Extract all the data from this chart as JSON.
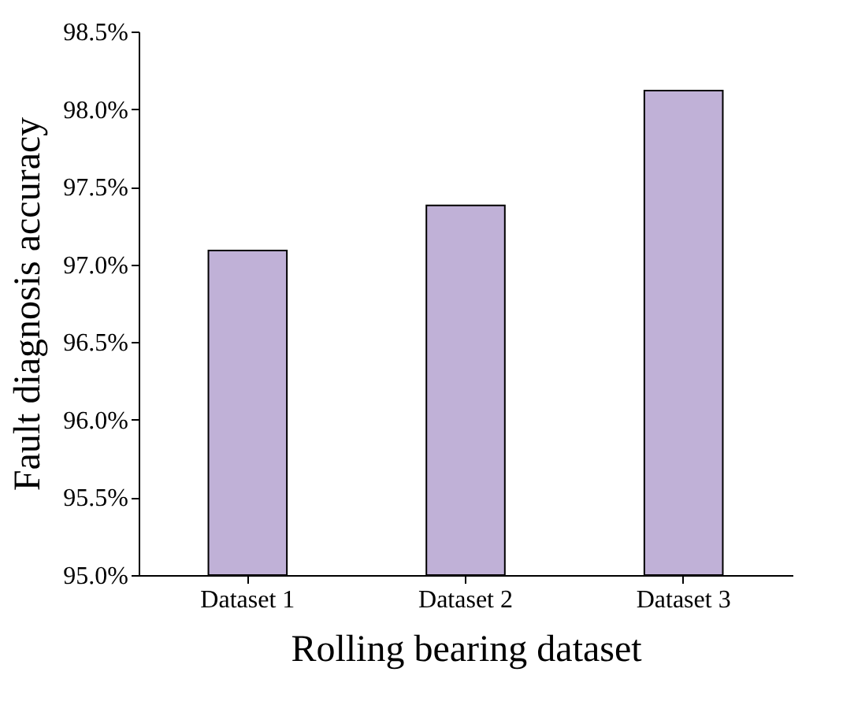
{
  "chart_data": {
    "type": "bar",
    "categories": [
      "Dataset 1",
      "Dataset 2",
      "Dataset 3"
    ],
    "values": [
      97.09,
      97.38,
      98.12
    ],
    "color": "#c0b1d7",
    "xlabel": "Rolling bearing dataset",
    "ylabel": "Fault diagnosis accuracy",
    "ylim": [
      95.0,
      98.5
    ],
    "yticks": [
      {
        "value": 95.0,
        "label": "95.0%"
      },
      {
        "value": 95.5,
        "label": "95.5%"
      },
      {
        "value": 96.0,
        "label": "96.0%"
      },
      {
        "value": 96.5,
        "label": "96.5%"
      },
      {
        "value": 97.0,
        "label": "97.0%"
      },
      {
        "value": 97.5,
        "label": "97.5%"
      },
      {
        "value": 98.0,
        "label": "98.0%"
      },
      {
        "value": 98.5,
        "label": "98.5%"
      }
    ]
  }
}
